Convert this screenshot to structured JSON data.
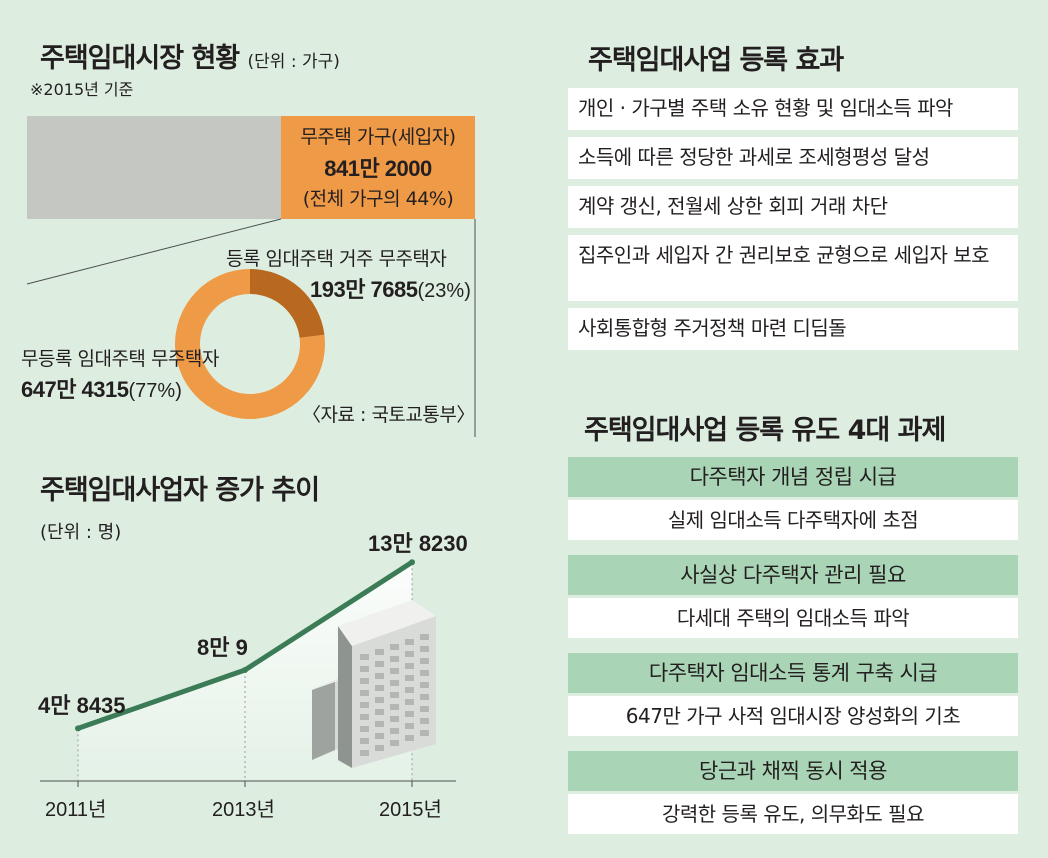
{
  "status": {
    "title": "주택임대시장 현황",
    "unit": "(단위 : 가구)",
    "basis": "※2015년 기준",
    "homeless": {
      "label": "무주택 가구(세입자)",
      "value": "841만 2000",
      "share": "(전체 가구의 44%)"
    },
    "registered": {
      "label": "등록 임대주택 거주 무주택자",
      "value": "193만 7685",
      "pct": "(23%)"
    },
    "unregistered": {
      "label": "무등록 임대주택 무주택자",
      "value": "647만 4315",
      "pct": "(77%)"
    },
    "source": "〈자료 : 국토교통부〉"
  },
  "growth": {
    "title": "주택임대사업자 증가 추이",
    "unit": "(단위 : 명)"
  },
  "effects": {
    "title": "주택임대사업 등록 효과",
    "items": [
      "개인 · 가구별 주택 소유 현황 및 임대소득 파악",
      "소득에 따른 정당한 과세로 조세형평성 달성",
      "계약 갱신, 전월세 상한 회피 거래 차단",
      "집주인과 세입자 간 권리보호 균형으로 세입자 보호",
      "사회통합형 주거정책 마련 디딤돌"
    ]
  },
  "tasks": {
    "title": "주택임대사업 등록 유도 4대 과제",
    "items": [
      {
        "head": "다주택자 개념 정립 시급",
        "body": "실제 임대소득 다주택자에 초점"
      },
      {
        "head": "사실상 다주택자 관리 필요",
        "body": "다세대 주택의 임대소득 파악"
      },
      {
        "head": "다주택자 임대소득 통계 구축 시급",
        "body": "647만 가구 사적 임대시장 양성화의 기초"
      },
      {
        "head": "당근과 채찍 동시 적용",
        "body": "강력한 등록 유도, 의무화도 필요"
      }
    ]
  },
  "colors": {
    "background": "#ddeee1",
    "orange": "#ef9a46",
    "dark_orange": "#b9681f",
    "line": "#3b7c56",
    "gray": "#c4c7c2",
    "task_head": "#a9d5b6"
  },
  "chart_data": [
    {
      "type": "pie",
      "title": "주택임대시장 현황",
      "categories": [
        "등록 임대주택 거주 무주택자",
        "무등록 임대주택 무주택자"
      ],
      "values": [
        1937685,
        6474315
      ],
      "percent": [
        23,
        77
      ],
      "value_labels": [
        "193만 7685",
        "647만 4315"
      ],
      "total_label": "841만 2000",
      "donut": true
    },
    {
      "type": "line",
      "title": "주택임대사업자 증가 추이",
      "ylabel": "(단위 : 명)",
      "x": [
        2011,
        2013,
        2015
      ],
      "xtick_labels": [
        "2011년",
        "2013년",
        "2015년"
      ],
      "values": [
        48435,
        80009,
        138230
      ],
      "data_labels": [
        "4만 8435",
        "8만 9",
        "13만 8230"
      ],
      "ylim": [
        20000,
        160000
      ]
    }
  ]
}
